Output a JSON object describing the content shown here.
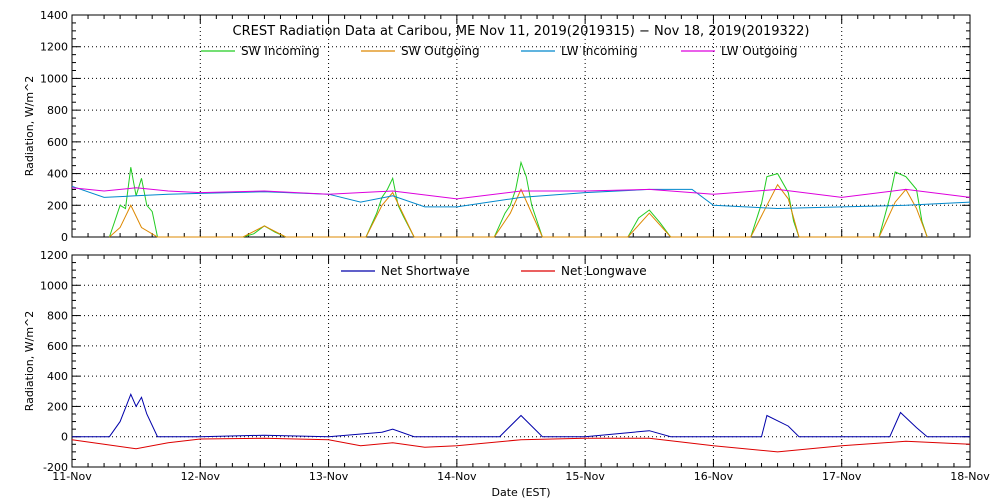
{
  "chart_data": [
    {
      "type": "line",
      "title": "CREST Radiation Data at Caribou, ME   Nov 11, 2019(2019315) − Nov 18, 2019(2019322)",
      "ylabel": "Radiation, W/m^2",
      "xlabel": "",
      "xlim": [
        "2019-11-11",
        "2019-11-18"
      ],
      "ylim": [
        0,
        1400
      ],
      "yticks": [
        0,
        200,
        400,
        600,
        800,
        1000,
        1200,
        1400
      ],
      "grid": true,
      "legend_position": "top",
      "series": [
        {
          "name": "SW Incoming",
          "color": "#22cc22",
          "x": [
            "2019-11-11 07:00",
            "2019-11-11 08:00",
            "2019-11-11 09:00",
            "2019-11-11 10:00",
            "2019-11-11 11:00",
            "2019-11-11 12:00",
            "2019-11-11 13:00",
            "2019-11-11 14:00",
            "2019-11-11 15:00",
            "2019-11-11 16:00",
            "2019-11-12 08:00",
            "2019-11-12 10:00",
            "2019-11-12 12:00",
            "2019-11-12 14:00",
            "2019-11-12 16:00",
            "2019-11-13 07:00",
            "2019-11-13 09:00",
            "2019-11-13 10:00",
            "2019-11-13 11:00",
            "2019-11-13 12:00",
            "2019-11-13 13:00",
            "2019-11-13 14:00",
            "2019-11-13 16:00",
            "2019-11-14 07:00",
            "2019-11-14 09:00",
            "2019-11-14 10:00",
            "2019-11-14 11:00",
            "2019-11-14 12:00",
            "2019-11-14 13:00",
            "2019-11-14 14:00",
            "2019-11-14 16:00",
            "2019-11-15 08:00",
            "2019-11-15 10:00",
            "2019-11-15 12:00",
            "2019-11-15 14:00",
            "2019-11-15 16:00",
            "2019-11-16 07:00",
            "2019-11-16 09:00",
            "2019-11-16 10:00",
            "2019-11-16 12:00",
            "2019-11-16 14:00",
            "2019-11-16 15:00",
            "2019-11-16 16:00",
            "2019-11-17 07:00",
            "2019-11-17 09:00",
            "2019-11-17 10:00",
            "2019-11-17 12:00",
            "2019-11-17 14:00",
            "2019-11-17 15:00",
            "2019-11-17 16:00"
          ],
          "y": [
            0,
            100,
            200,
            180,
            440,
            260,
            370,
            200,
            160,
            0,
            0,
            20,
            70,
            30,
            0,
            0,
            150,
            250,
            300,
            370,
            200,
            130,
            0,
            0,
            150,
            200,
            300,
            470,
            380,
            200,
            0,
            0,
            120,
            170,
            90,
            0,
            0,
            210,
            380,
            400,
            280,
            100,
            0,
            0,
            250,
            410,
            380,
            300,
            100,
            0
          ]
        },
        {
          "name": "SW Outgoing",
          "color": "#dd8800",
          "x": [
            "2019-11-11 07:00",
            "2019-11-11 09:00",
            "2019-11-11 11:00",
            "2019-11-11 13:00",
            "2019-11-11 16:00",
            "2019-11-12 08:00",
            "2019-11-12 12:00",
            "2019-11-12 16:00",
            "2019-11-13 07:00",
            "2019-11-13 10:00",
            "2019-11-13 12:00",
            "2019-11-13 16:00",
            "2019-11-14 07:00",
            "2019-11-14 10:00",
            "2019-11-14 12:00",
            "2019-11-14 16:00",
            "2019-11-15 08:00",
            "2019-11-15 12:00",
            "2019-11-15 16:00",
            "2019-11-16 07:00",
            "2019-11-16 10:00",
            "2019-11-16 12:00",
            "2019-11-16 14:00",
            "2019-11-16 16:00",
            "2019-11-17 07:00",
            "2019-11-17 10:00",
            "2019-11-17 12:00",
            "2019-11-17 14:00",
            "2019-11-17 16:00"
          ],
          "y": [
            0,
            60,
            200,
            60,
            0,
            0,
            70,
            0,
            0,
            200,
            280,
            0,
            0,
            150,
            300,
            0,
            0,
            150,
            0,
            0,
            200,
            330,
            240,
            0,
            0,
            220,
            300,
            180,
            0
          ]
        },
        {
          "name": "LW Incoming",
          "color": "#0088cc",
          "x": [
            "2019-11-11 00:00",
            "2019-11-11 06:00",
            "2019-11-11 12:00",
            "2019-11-11 18:00",
            "2019-11-12 00:00",
            "2019-11-12 12:00",
            "2019-11-13 00:00",
            "2019-11-13 06:00",
            "2019-11-13 12:00",
            "2019-11-13 18:00",
            "2019-11-14 00:00",
            "2019-11-14 12:00",
            "2019-11-15 00:00",
            "2019-11-15 12:00",
            "2019-11-15 20:00",
            "2019-11-16 00:00",
            "2019-11-16 12:00",
            "2019-11-17 00:00",
            "2019-11-17 12:00",
            "2019-11-18 00:00"
          ],
          "y": [
            320,
            250,
            260,
            270,
            275,
            285,
            270,
            220,
            260,
            190,
            190,
            250,
            280,
            300,
            300,
            200,
            180,
            190,
            200,
            220
          ]
        },
        {
          "name": "LW Outgoing",
          "color": "#dd00dd",
          "x": [
            "2019-11-11 00:00",
            "2019-11-11 06:00",
            "2019-11-11 12:00",
            "2019-11-11 18:00",
            "2019-11-12 00:00",
            "2019-11-12 12:00",
            "2019-11-13 00:00",
            "2019-11-13 12:00",
            "2019-11-14 00:00",
            "2019-11-14 12:00",
            "2019-11-15 00:00",
            "2019-11-15 12:00",
            "2019-11-16 00:00",
            "2019-11-16 12:00",
            "2019-11-17 00:00",
            "2019-11-17 12:00",
            "2019-11-18 00:00"
          ],
          "y": [
            310,
            290,
            310,
            290,
            280,
            290,
            270,
            290,
            240,
            290,
            290,
            300,
            270,
            300,
            250,
            300,
            250
          ]
        }
      ]
    },
    {
      "type": "line",
      "title": "",
      "ylabel": "Radiation, W/m^2",
      "xlabel": "Date (EST)",
      "xlim": [
        "2019-11-11",
        "2019-11-18"
      ],
      "ylim": [
        -200,
        1200
      ],
      "yticks": [
        -200,
        0,
        200,
        400,
        600,
        800,
        1000,
        1200
      ],
      "xticks": [
        "11-Nov",
        "12-Nov",
        "13-Nov",
        "14-Nov",
        "15-Nov",
        "16-Nov",
        "17-Nov",
        "18-Nov"
      ],
      "grid": true,
      "legend_position": "top",
      "series": [
        {
          "name": "Net Shortwave",
          "color": "#0000aa",
          "x": [
            "2019-11-11 00:00",
            "2019-11-11 07:00",
            "2019-11-11 09:00",
            "2019-11-11 11:00",
            "2019-11-11 12:00",
            "2019-11-11 13:00",
            "2019-11-11 14:00",
            "2019-11-11 16:00",
            "2019-11-12 00:00",
            "2019-11-12 12:00",
            "2019-11-13 00:00",
            "2019-11-13 10:00",
            "2019-11-13 12:00",
            "2019-11-13 16:00",
            "2019-11-14 00:00",
            "2019-11-14 08:00",
            "2019-11-14 12:00",
            "2019-11-14 16:00",
            "2019-11-15 00:00",
            "2019-11-15 12:00",
            "2019-11-15 16:00",
            "2019-11-16 07:00",
            "2019-11-16 09:00",
            "2019-11-16 10:00",
            "2019-11-16 14:00",
            "2019-11-16 16:00",
            "2019-11-17 07:00",
            "2019-11-17 09:00",
            "2019-11-17 11:00",
            "2019-11-17 14:00",
            "2019-11-17 16:00",
            "2019-11-18 00:00"
          ],
          "y": [
            0,
            0,
            100,
            280,
            200,
            260,
            150,
            0,
            0,
            10,
            0,
            30,
            50,
            0,
            0,
            0,
            140,
            0,
            0,
            40,
            0,
            0,
            0,
            140,
            70,
            0,
            0,
            0,
            160,
            60,
            0,
            0
          ]
        },
        {
          "name": "Net Longwave",
          "color": "#dd0000",
          "x": [
            "2019-11-11 00:00",
            "2019-11-11 06:00",
            "2019-11-11 12:00",
            "2019-11-11 18:00",
            "2019-11-12 00:00",
            "2019-11-12 12:00",
            "2019-11-13 00:00",
            "2019-11-13 06:00",
            "2019-11-13 12:00",
            "2019-11-13 18:00",
            "2019-11-14 00:00",
            "2019-11-14 12:00",
            "2019-11-15 00:00",
            "2019-11-15 12:00",
            "2019-11-16 00:00",
            "2019-11-16 12:00",
            "2019-11-17 00:00",
            "2019-11-17 12:00",
            "2019-11-18 00:00"
          ],
          "y": [
            -20,
            -50,
            -80,
            -40,
            -15,
            -10,
            -20,
            -60,
            -40,
            -70,
            -60,
            -20,
            -10,
            -10,
            -60,
            -100,
            -60,
            -30,
            -50
          ]
        }
      ]
    }
  ]
}
